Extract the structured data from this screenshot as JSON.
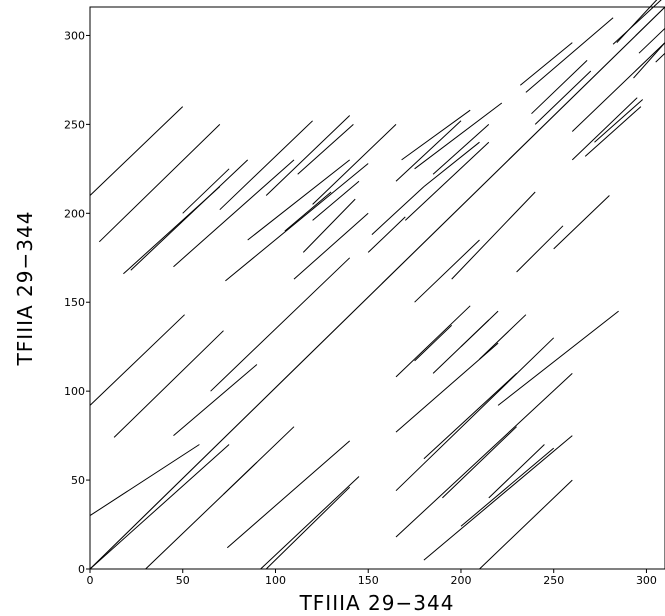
{
  "chart_data": {
    "type": "scatter",
    "title": "",
    "xlabel": "TFIIIA 29−344",
    "ylabel": "TFIIIA 29−344",
    "xlim": [
      0,
      310
    ],
    "ylim": [
      0,
      316
    ],
    "x_ticks": [
      0,
      50,
      100,
      150,
      200,
      250,
      300
    ],
    "y_ticks": [
      0,
      50,
      100,
      150,
      200,
      250,
      300
    ],
    "grid": false,
    "legend": "none",
    "line_color": "#000000",
    "segments": [
      [
        0,
        0,
        310,
        316
      ],
      [
        0,
        92,
        51,
        143
      ],
      [
        13,
        74,
        72,
        134
      ],
      [
        0,
        30,
        59,
        70
      ],
      [
        0,
        0,
        75,
        70
      ],
      [
        30,
        0,
        90,
        60
      ],
      [
        45,
        75,
        90,
        115
      ],
      [
        65,
        100,
        140,
        175
      ],
      [
        74,
        12,
        140,
        72
      ],
      [
        92,
        0,
        145,
        52
      ],
      [
        95,
        0,
        140,
        46
      ],
      [
        72,
        42,
        110,
        80
      ],
      [
        0,
        210,
        50,
        260
      ],
      [
        5,
        184,
        70,
        250
      ],
      [
        18,
        166,
        70,
        215
      ],
      [
        22,
        168,
        85,
        230
      ],
      [
        45,
        170,
        110,
        230
      ],
      [
        73,
        162,
        150,
        228
      ],
      [
        110,
        163,
        150,
        200
      ],
      [
        115,
        178,
        143,
        208
      ],
      [
        85,
        185,
        140,
        230
      ],
      [
        120,
        196,
        145,
        218
      ],
      [
        70,
        202,
        120,
        252
      ],
      [
        50,
        200,
        75,
        225
      ],
      [
        95,
        210,
        140,
        255
      ],
      [
        112,
        222,
        142,
        250
      ],
      [
        120,
        205,
        165,
        250
      ],
      [
        105,
        190,
        130,
        212
      ],
      [
        150,
        178,
        170,
        198
      ],
      [
        152,
        188,
        180,
        215
      ],
      [
        165,
        218,
        200,
        252
      ],
      [
        168,
        230,
        205,
        258
      ],
      [
        170,
        196,
        215,
        240
      ],
      [
        175,
        225,
        222,
        262
      ],
      [
        180,
        215,
        210,
        240
      ],
      [
        185,
        222,
        215,
        250
      ],
      [
        165,
        108,
        205,
        148
      ],
      [
        175,
        117,
        195,
        137
      ],
      [
        165,
        77,
        220,
        127
      ],
      [
        165,
        44,
        250,
        130
      ],
      [
        180,
        62,
        230,
        110
      ],
      [
        185,
        110,
        215,
        140
      ],
      [
        200,
        125,
        220,
        145
      ],
      [
        210,
        118,
        235,
        143
      ],
      [
        165,
        18,
        260,
        110
      ],
      [
        180,
        5,
        260,
        75
      ],
      [
        190,
        40,
        230,
        80
      ],
      [
        210,
        0,
        260,
        50
      ],
      [
        200,
        24,
        250,
        68
      ],
      [
        215,
        40,
        245,
        70
      ],
      [
        195,
        163,
        240,
        212
      ],
      [
        175,
        150,
        210,
        185
      ],
      [
        230,
        167,
        255,
        193
      ],
      [
        220,
        92,
        285,
        145
      ],
      [
        250,
        180,
        280,
        210
      ],
      [
        235,
        268,
        282,
        310
      ],
      [
        232,
        272,
        260,
        296
      ],
      [
        238,
        256,
        268,
        286
      ],
      [
        240,
        250,
        270,
        280
      ],
      [
        260,
        230,
        295,
        265
      ],
      [
        267,
        232,
        297,
        260
      ],
      [
        272,
        240,
        298,
        264
      ],
      [
        282,
        295,
        310,
        322
      ],
      [
        284,
        296,
        310,
        325
      ],
      [
        293,
        276,
        310,
        296
      ],
      [
        296,
        290,
        310,
        304
      ],
      [
        305,
        285,
        310,
        290
      ],
      [
        260,
        246,
        310,
        296
      ]
    ]
  }
}
